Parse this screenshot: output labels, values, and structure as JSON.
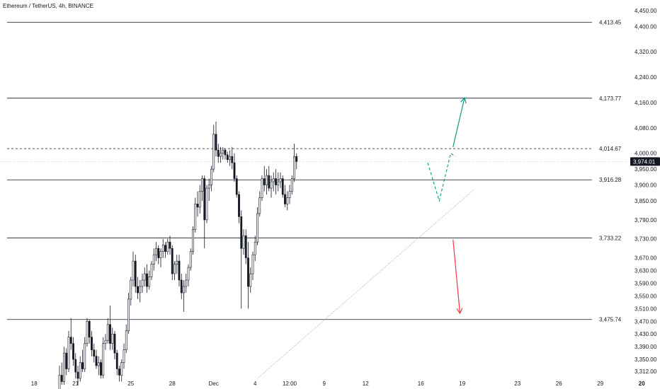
{
  "header": {
    "title": "Ethereum / TetherUS, 4h, BINANCE"
  },
  "colors": {
    "up": "#131722",
    "down": "#131722",
    "level_line": "#131722",
    "trendline": "#9598a1",
    "arrow_up": "#089981",
    "arrow_down": "#f23645",
    "price_tag_bg": "#131722"
  },
  "chart_data": {
    "type": "candlestick",
    "title": "Ethereum / TetherUS, 4h, BINANCE",
    "ylim": [
      3290,
      4470
    ],
    "y_ticks": [
      4450,
      4400,
      4320,
      4240,
      4160,
      4080,
      4000,
      3950,
      3900,
      3850,
      3790,
      3730,
      3670,
      3630,
      3590,
      3550,
      3510,
      3470,
      3430,
      3390,
      3350,
      3312
    ],
    "y_tick_labels": [
      "4,450.00",
      "4,400.00",
      "4,320.00",
      "4,240.00",
      "4,160.00",
      "4,080.00",
      "4,000.00",
      "3,950.00",
      "3,900.00",
      "3,850.00",
      "3,790.00",
      "3,730.00",
      "3,670.00",
      "3,630.00",
      "3,590.00",
      "3,550.00",
      "3,510.00",
      "3,470.00",
      "3,430.00",
      "3,390.00",
      "3,350.00",
      "3,312.00"
    ],
    "x_ticks": [
      {
        "label": "18",
        "bar": -11
      },
      {
        "label": "21",
        "bar": 7
      },
      {
        "label": "25",
        "bar": 31
      },
      {
        "label": "28",
        "bar": 49
      },
      {
        "label": "Dec",
        "bar": 67
      },
      {
        "label": "4",
        "bar": 85
      },
      {
        "label": "12:00",
        "bar": 100
      },
      {
        "label": "9",
        "bar": 115
      },
      {
        "label": "12",
        "bar": 133
      },
      {
        "label": "16",
        "bar": 157
      },
      {
        "label": "19",
        "bar": 175
      },
      {
        "label": "23",
        "bar": 199
      },
      {
        "label": "26",
        "bar": 217
      },
      {
        "label": "29",
        "bar": 235
      },
      {
        "label": "20",
        "bar": 253
      }
    ],
    "levels": [
      {
        "value": 4413.45,
        "label": "4,413.45",
        "style": "solid"
      },
      {
        "value": 4173.77,
        "label": "4,173.77",
        "style": "solid"
      },
      {
        "value": 4014.67,
        "label": "4,014.67",
        "style": "dashed"
      },
      {
        "value": 3916.28,
        "label": "3,916.28",
        "style": "solid"
      },
      {
        "value": 3733.22,
        "label": "3,733.22",
        "style": "solid"
      },
      {
        "value": 3475.74,
        "label": "3,475.74",
        "style": "solid"
      }
    ],
    "current_price": {
      "value": 3974.01,
      "label": "3,974.01"
    },
    "trendline": {
      "from": {
        "bar": 86,
        "price": 3290
      },
      "to": {
        "bar": 180,
        "price": 3885
      }
    },
    "projection": {
      "up_path": [
        {
          "bar": 160,
          "price": 3970
        },
        {
          "bar": 165,
          "price": 3850
        },
        {
          "bar": 170,
          "price": 4000
        },
        {
          "bar": 172,
          "price": 3990
        }
      ],
      "up_arrow": {
        "from": {
          "bar": 171,
          "price": 4020
        },
        "to": {
          "bar": 176,
          "price": 4175
        }
      },
      "down_arrow": {
        "from": {
          "bar": 171,
          "price": 3728
        },
        "to": {
          "bar": 174,
          "price": 3495
        }
      }
    },
    "candles": [
      [
        3250,
        3330,
        3240,
        3300
      ],
      [
        3300,
        3340,
        3270,
        3280
      ],
      [
        3280,
        3390,
        3270,
        3370
      ],
      [
        3370,
        3385,
        3300,
        3320
      ],
      [
        3320,
        3440,
        3310,
        3420
      ],
      [
        3420,
        3480,
        3380,
        3400
      ],
      [
        3400,
        3420,
        3330,
        3350
      ],
      [
        3350,
        3370,
        3290,
        3310
      ],
      [
        3310,
        3330,
        3270,
        3290
      ],
      [
        3290,
        3360,
        3280,
        3340
      ],
      [
        3340,
        3380,
        3310,
        3320
      ],
      [
        3320,
        3420,
        3310,
        3400
      ],
      [
        3400,
        3480,
        3390,
        3470
      ],
      [
        3470,
        3475,
        3400,
        3420
      ],
      [
        3420,
        3440,
        3360,
        3380
      ],
      [
        3380,
        3400,
        3340,
        3360
      ],
      [
        3360,
        3380,
        3320,
        3330
      ],
      [
        3330,
        3360,
        3300,
        3340
      ],
      [
        3340,
        3350,
        3290,
        3300
      ],
      [
        3300,
        3420,
        3290,
        3400
      ],
      [
        3400,
        3430,
        3380,
        3410
      ],
      [
        3410,
        3480,
        3400,
        3460
      ],
      [
        3460,
        3520,
        3380,
        3400
      ],
      [
        3400,
        3450,
        3380,
        3430
      ],
      [
        3430,
        3440,
        3350,
        3370
      ],
      [
        3370,
        3380,
        3300,
        3320
      ],
      [
        3320,
        3330,
        3280,
        3300
      ],
      [
        3300,
        3350,
        3280,
        3340
      ],
      [
        3340,
        3400,
        3320,
        3380
      ],
      [
        3380,
        3460,
        3370,
        3440
      ],
      [
        3440,
        3560,
        3430,
        3540
      ],
      [
        3540,
        3610,
        3520,
        3600
      ],
      [
        3600,
        3690,
        3580,
        3660
      ],
      [
        3660,
        3680,
        3560,
        3580
      ],
      [
        3580,
        3610,
        3540,
        3560
      ],
      [
        3560,
        3600,
        3530,
        3580
      ],
      [
        3580,
        3620,
        3560,
        3600
      ],
      [
        3600,
        3640,
        3580,
        3620
      ],
      [
        3620,
        3650,
        3560,
        3580
      ],
      [
        3580,
        3630,
        3570,
        3610
      ],
      [
        3610,
        3660,
        3600,
        3650
      ],
      [
        3650,
        3700,
        3630,
        3680
      ],
      [
        3680,
        3720,
        3660,
        3700
      ],
      [
        3700,
        3710,
        3650,
        3670
      ],
      [
        3670,
        3700,
        3640,
        3690
      ],
      [
        3690,
        3730,
        3670,
        3710
      ],
      [
        3710,
        3720,
        3670,
        3690
      ],
      [
        3690,
        3730,
        3680,
        3720
      ],
      [
        3720,
        3740,
        3680,
        3700
      ],
      [
        3700,
        3710,
        3600,
        3620
      ],
      [
        3620,
        3660,
        3600,
        3650
      ],
      [
        3650,
        3680,
        3620,
        3660
      ],
      [
        3660,
        3680,
        3580,
        3600
      ],
      [
        3600,
        3620,
        3540,
        3560
      ],
      [
        3560,
        3600,
        3500,
        3580
      ],
      [
        3580,
        3620,
        3560,
        3600
      ],
      [
        3600,
        3650,
        3580,
        3640
      ],
      [
        3640,
        3700,
        3630,
        3690
      ],
      [
        3690,
        3770,
        3680,
        3760
      ],
      [
        3760,
        3860,
        3750,
        3840
      ],
      [
        3840,
        3880,
        3800,
        3830
      ],
      [
        3830,
        3900,
        3810,
        3880
      ],
      [
        3880,
        3930,
        3850,
        3920
      ],
      [
        3920,
        3930,
        3700,
        3790
      ],
      [
        3790,
        3900,
        3780,
        3890
      ],
      [
        3890,
        3920,
        3850,
        3900
      ],
      [
        3900,
        3960,
        3880,
        3950
      ],
      [
        3950,
        4090,
        3940,
        4060
      ],
      [
        4060,
        4100,
        3990,
        4010
      ],
      [
        4010,
        4030,
        3970,
        3990
      ],
      [
        3990,
        4020,
        3970,
        4000
      ],
      [
        4000,
        4020,
        3980,
        4010
      ],
      [
        4010,
        4015,
        3980,
        3995
      ],
      [
        3995,
        4005,
        3970,
        3980
      ],
      [
        3980,
        4010,
        3960,
        3990
      ],
      [
        3990,
        4020,
        3950,
        3970
      ],
      [
        3970,
        4000,
        3910,
        3920
      ],
      [
        3920,
        3930,
        3860,
        3870
      ],
      [
        3870,
        3880,
        3780,
        3800
      ],
      [
        3800,
        3820,
        3510,
        3700
      ],
      [
        3700,
        3760,
        3680,
        3740
      ],
      [
        3740,
        3760,
        3650,
        3670
      ],
      [
        3670,
        3720,
        3510,
        3580
      ],
      [
        3580,
        3640,
        3560,
        3620
      ],
      [
        3620,
        3690,
        3600,
        3680
      ],
      [
        3680,
        3740,
        3660,
        3720
      ],
      [
        3720,
        3830,
        3710,
        3810
      ],
      [
        3810,
        3880,
        3800,
        3860
      ],
      [
        3860,
        3930,
        3850,
        3920
      ],
      [
        3920,
        3960,
        3880,
        3900
      ],
      [
        3900,
        3950,
        3870,
        3930
      ],
      [
        3930,
        3960,
        3880,
        3890
      ],
      [
        3890,
        3930,
        3860,
        3910
      ],
      [
        3910,
        3940,
        3880,
        3920
      ],
      [
        3920,
        3950,
        3870,
        3900
      ],
      [
        3900,
        3940,
        3880,
        3910
      ],
      [
        3910,
        3940,
        3890,
        3920
      ],
      [
        3920,
        3930,
        3860,
        3870
      ],
      [
        3870,
        3900,
        3830,
        3840
      ],
      [
        3840,
        3880,
        3820,
        3860
      ],
      [
        3860,
        3900,
        3840,
        3880
      ],
      [
        3880,
        3930,
        3870,
        3920
      ],
      [
        3920,
        4030,
        3910,
        3990
      ],
      [
        3990,
        4000,
        3950,
        3974
      ]
    ]
  }
}
